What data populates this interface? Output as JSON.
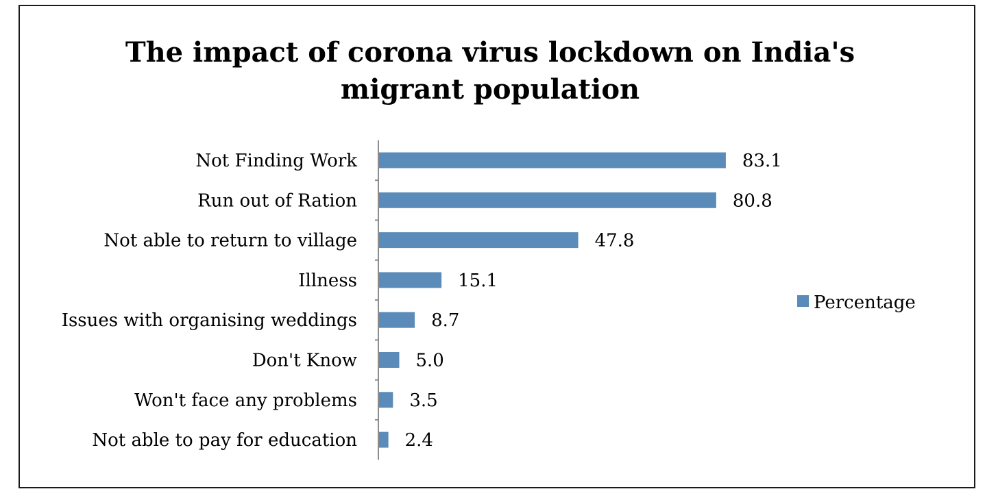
{
  "chart_data": {
    "type": "bar",
    "orientation": "horizontal",
    "title": [
      "The impact of corona virus lockdown on India's",
      "migrant population"
    ],
    "categories": [
      "Not Finding Work",
      "Run out of Ration",
      "Not able to return to village",
      "Illness",
      "Issues with organising weddings",
      "Don't Know",
      "Won't face any problems",
      "Not able to pay for education"
    ],
    "series": [
      {
        "name": "Percentage",
        "values": [
          83.1,
          80.8,
          47.8,
          15.1,
          8.7,
          5.0,
          3.5,
          2.4
        ],
        "labels": [
          "83.1",
          "80.8",
          "47.8",
          "15.1",
          "8.7",
          "5.0",
          "3.5",
          "2.4"
        ],
        "color": "#5b8bb9"
      }
    ],
    "xlim": [
      0,
      100
    ],
    "legend": "right",
    "grid": false
  }
}
